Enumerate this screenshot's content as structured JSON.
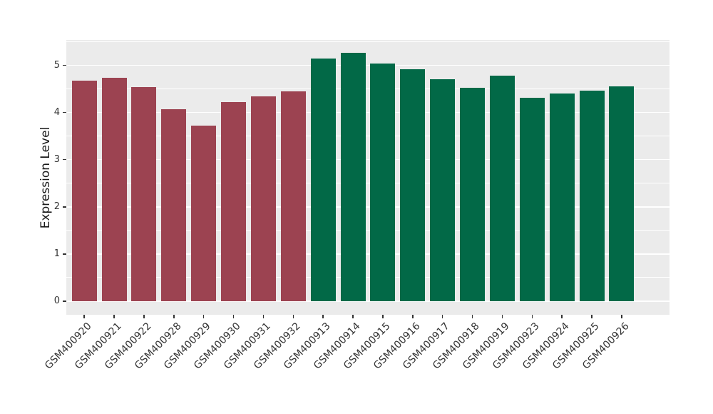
{
  "chart_data": {
    "type": "bar",
    "title": "",
    "xlabel": "",
    "ylabel": "Expression Level",
    "categories": [
      "GSM400920",
      "GSM400921",
      "GSM400922",
      "GSM400928",
      "GSM400929",
      "GSM400930",
      "GSM400931",
      "GSM400932",
      "GSM400913",
      "GSM400914",
      "GSM400915",
      "GSM400916",
      "GSM400917",
      "GSM400918",
      "GSM400919",
      "GSM400923",
      "GSM400924",
      "GSM400925",
      "GSM400926"
    ],
    "values": [
      4.67,
      4.73,
      4.54,
      4.07,
      3.73,
      4.22,
      4.34,
      4.45,
      5.14,
      5.27,
      5.04,
      4.92,
      4.7,
      4.52,
      4.78,
      4.31,
      4.4,
      4.47,
      4.55
    ],
    "bar_colors": [
      "#9C4351",
      "#9C4351",
      "#9C4351",
      "#9C4351",
      "#9C4351",
      "#9C4351",
      "#9C4351",
      "#9C4351",
      "#026947",
      "#026947",
      "#026947",
      "#026947",
      "#026947",
      "#026947",
      "#026947",
      "#026947",
      "#026947",
      "#026947",
      "#026947"
    ],
    "group_colors": {
      "left_group": "#9C4351",
      "right_group": "#026947"
    },
    "yticks": [
      0,
      1,
      2,
      3,
      4,
      5
    ],
    "minor_yticks": [
      0.5,
      1.5,
      2.5,
      3.5,
      4.5,
      5.5
    ],
    "ylim": [
      -0.29,
      5.54
    ],
    "grid": true,
    "legend_position": "none",
    "panel_bg": "#EBEBEB",
    "grid_color": "#FFFFFF",
    "tick_color": "#333333",
    "tick_label_color": "#333333",
    "axis_title_color": "#1A1A1A"
  }
}
